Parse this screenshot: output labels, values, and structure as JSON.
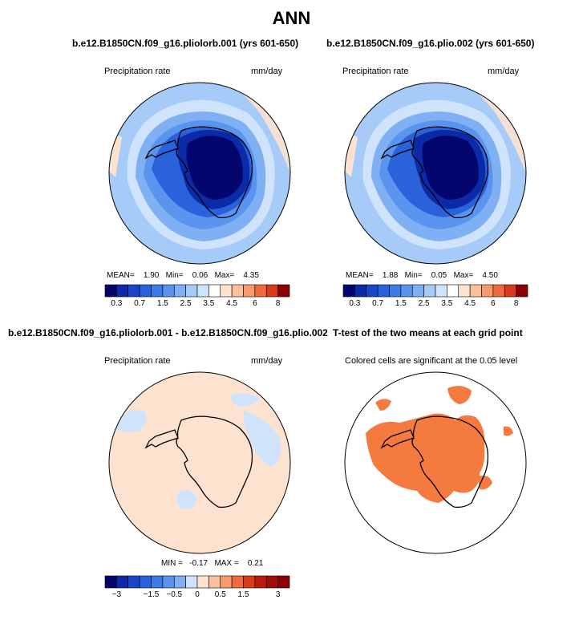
{
  "title": "ANN",
  "panels": [
    {
      "title": "b.e12.B1850CN.f09_g16.pliolorb.001 (yrs 601-650)",
      "left_label": "Precipitation rate",
      "right_label": "mm/day",
      "stats": {
        "mean_label": "MEAN=",
        "mean": "1.90",
        "min_label": "Min=",
        "min": "0.06",
        "max_label": "Max=",
        "max": "4.35"
      }
    },
    {
      "title": "b.e12.B1850CN.f09_g16.plio.002 (yrs 601-650)",
      "left_label": "Precipitation rate",
      "right_label": "mm/day",
      "stats": {
        "mean_label": "MEAN=",
        "mean": "1.88",
        "min_label": "Min=",
        "min": "0.05",
        "max_label": "Max=",
        "max": "4.50"
      }
    },
    {
      "title": "b.e12.B1850CN.f09_g16.pliolorb.001 - b.e12.B1850CN.f09_g16.plio.002",
      "left_label": "Precipitation rate",
      "right_label": "mm/day",
      "stats": {
        "min_label": "MIN =",
        "min": "-0.17",
        "max_label": "MAX =",
        "max": "0.21"
      }
    },
    {
      "title": "T-test of the two means at each grid point",
      "subtitle": "Colored cells are significant at the 0.05 level"
    }
  ],
  "chart_data": [
    {
      "type": "heatmap",
      "projection": "south polar stereographic",
      "variable": "Precipitation rate",
      "units": "mm/day",
      "stats": {
        "mean": 1.9,
        "min": 0.06,
        "max": 4.35
      },
      "colorbar": {
        "levels": [
          0.3,
          0.5,
          0.7,
          1,
          1.5,
          2,
          2.5,
          3,
          3.5,
          4,
          4.5,
          5,
          6,
          7,
          8
        ],
        "tick_labels": [
          "0.3",
          "0.7",
          "1.5",
          "2.5",
          "3.5",
          "4.5",
          "6",
          "8"
        ],
        "colors": [
          "#05056e",
          "#0b2aa8",
          "#1946c8",
          "#2a62dc",
          "#3c7be8",
          "#5a94ef",
          "#7fb0f4",
          "#a6cbf9",
          "#cfe3fc",
          "#ffffff",
          "#fde3cf",
          "#fbc19c",
          "#f79a6c",
          "#f06a3e",
          "#d83a1a",
          "#8b0000"
        ]
      }
    },
    {
      "type": "heatmap",
      "projection": "south polar stereographic",
      "variable": "Precipitation rate",
      "units": "mm/day",
      "stats": {
        "mean": 1.88,
        "min": 0.05,
        "max": 4.5
      },
      "colorbar": {
        "levels": [
          0.3,
          0.5,
          0.7,
          1,
          1.5,
          2,
          2.5,
          3,
          3.5,
          4,
          4.5,
          5,
          6,
          7,
          8
        ],
        "tick_labels": [
          "0.3",
          "0.7",
          "1.5",
          "2.5",
          "3.5",
          "4.5",
          "6",
          "8"
        ],
        "colors": [
          "#05056e",
          "#0b2aa8",
          "#1946c8",
          "#2a62dc",
          "#3c7be8",
          "#5a94ef",
          "#7fb0f4",
          "#a6cbf9",
          "#cfe3fc",
          "#ffffff",
          "#fde3cf",
          "#fbc19c",
          "#f79a6c",
          "#f06a3e",
          "#d83a1a",
          "#8b0000"
        ]
      }
    },
    {
      "type": "heatmap",
      "projection": "south polar stereographic",
      "variable": "Precipitation rate",
      "units": "mm/day",
      "stats": {
        "min": -0.17,
        "max": 0.21
      },
      "colorbar": {
        "levels": [
          -3,
          -2.5,
          -2,
          -1.5,
          -1,
          -0.5,
          -0.25,
          0,
          0.25,
          0.5,
          1,
          1.5,
          2,
          2.5,
          3
        ],
        "tick_labels": [
          "-3",
          "-1.5",
          "-0.5",
          "0",
          "0.5",
          "1.5",
          "3"
        ],
        "colors": [
          "#05056e",
          "#0b2aa8",
          "#1946c8",
          "#2a62dc",
          "#3c7be8",
          "#5a94ef",
          "#7fb0f4",
          "#cfe3fc",
          "#fde3cf",
          "#fbc19c",
          "#f79a6c",
          "#f06a3e",
          "#d83a1a",
          "#b81c0c",
          "#a00e06",
          "#8b0000"
        ]
      }
    },
    {
      "type": "heatmap",
      "projection": "south polar stereographic",
      "description_color": "#f47a40",
      "significance_level": 0.05
    }
  ]
}
